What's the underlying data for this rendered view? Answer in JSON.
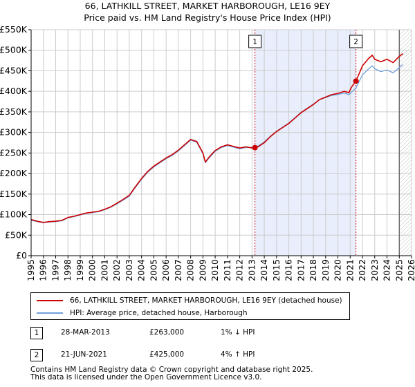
{
  "chart_data": {
    "type": "line",
    "title": "66, LATHKILL STREET, MARKET HARBOROUGH, LE16 9EY",
    "subtitle": "Price paid vs. HM Land Registry's House Price Index (HPI)",
    "xlim": [
      1995,
      2026
    ],
    "ylim": [
      0,
      550000
    ],
    "x_ticks": [
      1995,
      1996,
      1997,
      1998,
      1999,
      2000,
      2001,
      2002,
      2003,
      2004,
      2005,
      2006,
      2007,
      2008,
      2009,
      2010,
      2011,
      2012,
      2013,
      2014,
      2015,
      2016,
      2017,
      2018,
      2019,
      2020,
      2021,
      2022,
      2023,
      2024,
      2025,
      2026
    ],
    "y_ticks": [
      {
        "value": 0,
        "label": "£0"
      },
      {
        "value": 50000,
        "label": "£50K"
      },
      {
        "value": 100000,
        "label": "£100K"
      },
      {
        "value": 150000,
        "label": "£150K"
      },
      {
        "value": 200000,
        "label": "£200K"
      },
      {
        "value": 250000,
        "label": "£250K"
      },
      {
        "value": 300000,
        "label": "£300K"
      },
      {
        "value": 350000,
        "label": "£350K"
      },
      {
        "value": 400000,
        "label": "£400K"
      },
      {
        "value": 450000,
        "label": "£450K"
      },
      {
        "value": 500000,
        "label": "£500K"
      },
      {
        "value": 550000,
        "label": "£550K"
      }
    ],
    "grid": true,
    "colors": {
      "property": "#cc0000",
      "hpi": "#6f9fdc",
      "shade": "#e8eefb",
      "grid": "#cccccc",
      "sale_line": "#cc0000",
      "data_end": "#555555"
    },
    "series": [
      {
        "name": "66, LATHKILL STREET, MARKET HARBOROUGH, LE16 9EY (detached house)",
        "key": "property",
        "points": [
          [
            1995.0,
            88000
          ],
          [
            1995.5,
            84000
          ],
          [
            1996.0,
            81000
          ],
          [
            1996.5,
            83000
          ],
          [
            1997.0,
            84000
          ],
          [
            1997.5,
            86000
          ],
          [
            1998.0,
            93000
          ],
          [
            1998.5,
            96000
          ],
          [
            1999.0,
            100000
          ],
          [
            1999.5,
            104000
          ],
          [
            2000.0,
            106000
          ],
          [
            2000.5,
            108000
          ],
          [
            2001.0,
            113000
          ],
          [
            2001.5,
            119000
          ],
          [
            2002.0,
            128000
          ],
          [
            2002.5,
            137000
          ],
          [
            2003.0,
            147000
          ],
          [
            2003.5,
            168000
          ],
          [
            2004.0,
            188000
          ],
          [
            2004.5,
            205000
          ],
          [
            2005.0,
            218000
          ],
          [
            2005.5,
            228000
          ],
          [
            2006.0,
            238000
          ],
          [
            2006.5,
            246000
          ],
          [
            2007.0,
            257000
          ],
          [
            2007.5,
            270000
          ],
          [
            2008.0,
            283000
          ],
          [
            2008.5,
            278000
          ],
          [
            2009.0,
            250000
          ],
          [
            2009.2,
            228000
          ],
          [
            2009.5,
            240000
          ],
          [
            2010.0,
            256000
          ],
          [
            2010.5,
            265000
          ],
          [
            2011.0,
            270000
          ],
          [
            2011.5,
            266000
          ],
          [
            2012.0,
            262000
          ],
          [
            2012.5,
            265000
          ],
          [
            2013.0,
            262000
          ],
          [
            2013.24,
            263000
          ],
          [
            2013.5,
            265000
          ],
          [
            2014.0,
            275000
          ],
          [
            2014.5,
            290000
          ],
          [
            2015.0,
            302000
          ],
          [
            2015.5,
            312000
          ],
          [
            2016.0,
            322000
          ],
          [
            2016.5,
            335000
          ],
          [
            2017.0,
            348000
          ],
          [
            2017.5,
            358000
          ],
          [
            2018.0,
            368000
          ],
          [
            2018.5,
            380000
          ],
          [
            2019.0,
            386000
          ],
          [
            2019.5,
            392000
          ],
          [
            2020.0,
            395000
          ],
          [
            2020.5,
            400000
          ],
          [
            2020.9,
            397000
          ],
          [
            2021.1,
            410000
          ],
          [
            2021.47,
            425000
          ],
          [
            2021.8,
            448000
          ],
          [
            2022.0,
            462000
          ],
          [
            2022.5,
            480000
          ],
          [
            2022.8,
            488000
          ],
          [
            2023.0,
            478000
          ],
          [
            2023.5,
            472000
          ],
          [
            2024.0,
            478000
          ],
          [
            2024.5,
            470000
          ],
          [
            2025.0,
            485000
          ],
          [
            2025.3,
            492000
          ]
        ]
      },
      {
        "name": "HPI: Average price, detached house, Harborough",
        "key": "hpi",
        "points": [
          [
            1995.0,
            86000
          ],
          [
            1995.5,
            83000
          ],
          [
            1996.0,
            80000
          ],
          [
            1996.5,
            82000
          ],
          [
            1997.0,
            83000
          ],
          [
            1997.5,
            85000
          ],
          [
            1998.0,
            92000
          ],
          [
            1998.5,
            95000
          ],
          [
            1999.0,
            99000
          ],
          [
            1999.5,
            103000
          ],
          [
            2000.0,
            105000
          ],
          [
            2000.5,
            107000
          ],
          [
            2001.0,
            112000
          ],
          [
            2001.5,
            118000
          ],
          [
            2002.0,
            126000
          ],
          [
            2002.5,
            135000
          ],
          [
            2003.0,
            145000
          ],
          [
            2003.5,
            166000
          ],
          [
            2004.0,
            186000
          ],
          [
            2004.5,
            203000
          ],
          [
            2005.0,
            216000
          ],
          [
            2005.5,
            226000
          ],
          [
            2006.0,
            236000
          ],
          [
            2006.5,
            244000
          ],
          [
            2007.0,
            255000
          ],
          [
            2007.5,
            268000
          ],
          [
            2008.0,
            281000
          ],
          [
            2008.5,
            276000
          ],
          [
            2009.0,
            248000
          ],
          [
            2009.2,
            226000
          ],
          [
            2009.5,
            238000
          ],
          [
            2010.0,
            254000
          ],
          [
            2010.5,
            263000
          ],
          [
            2011.0,
            268000
          ],
          [
            2011.5,
            264000
          ],
          [
            2012.0,
            260000
          ],
          [
            2012.5,
            263000
          ],
          [
            2013.0,
            264000
          ],
          [
            2013.24,
            266000
          ],
          [
            2013.5,
            267000
          ],
          [
            2014.0,
            277000
          ],
          [
            2014.5,
            291000
          ],
          [
            2015.0,
            303000
          ],
          [
            2015.5,
            313000
          ],
          [
            2016.0,
            323000
          ],
          [
            2016.5,
            336000
          ],
          [
            2017.0,
            349000
          ],
          [
            2017.5,
            359000
          ],
          [
            2018.0,
            369000
          ],
          [
            2018.5,
            380000
          ],
          [
            2019.0,
            385000
          ],
          [
            2019.5,
            390000
          ],
          [
            2020.0,
            392000
          ],
          [
            2020.5,
            396000
          ],
          [
            2020.9,
            392000
          ],
          [
            2021.1,
            398000
          ],
          [
            2021.47,
            408000
          ],
          [
            2021.8,
            428000
          ],
          [
            2022.0,
            440000
          ],
          [
            2022.5,
            455000
          ],
          [
            2022.8,
            462000
          ],
          [
            2023.0,
            455000
          ],
          [
            2023.5,
            448000
          ],
          [
            2024.0,
            452000
          ],
          [
            2024.5,
            445000
          ],
          [
            2025.0,
            458000
          ],
          [
            2025.3,
            465000
          ]
        ]
      }
    ],
    "sales": [
      {
        "id": "1",
        "x": 2013.24,
        "price": 263000
      },
      {
        "id": "2",
        "x": 2021.47,
        "price": 425000
      }
    ],
    "shade_range": [
      2013.24,
      2021.47
    ],
    "data_end_x": 2025.0
  },
  "legend": {
    "property_label": "66, LATHKILL STREET, MARKET HARBOROUGH, LE16 9EY (detached house)",
    "hpi_label": "HPI: Average price, detached house, Harborough"
  },
  "transactions": [
    {
      "id": "1",
      "date": "28-MAR-2013",
      "price": "£263,000",
      "hpi": "1% ↓ HPI"
    },
    {
      "id": "2",
      "date": "21-JUN-2021",
      "price": "£425,000",
      "hpi": "4% ↑ HPI"
    }
  ],
  "footer": {
    "line1": "Contains HM Land Registry data © Crown copyright and database right 2025.",
    "line2": "This data is licensed under the Open Government Licence v3.0."
  }
}
